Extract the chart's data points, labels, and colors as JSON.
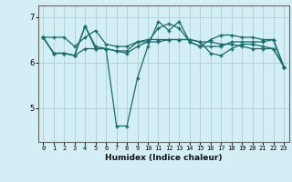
{
  "xlabel": "Humidex (Indice chaleur)",
  "bg_color": "#d4eef5",
  "grid_color": "#afd4dc",
  "line_color": "#1a6b6b",
  "xlim": [
    -0.5,
    23.5
  ],
  "ylim": [
    4.25,
    7.25
  ],
  "yticks": [
    5,
    6,
    7
  ],
  "xtick_labels": [
    "0",
    "1",
    "2",
    "3",
    "4",
    "5",
    "6",
    "7",
    "8",
    "9",
    "10",
    "11",
    "12",
    "13",
    "14",
    "15",
    "16",
    "17",
    "18",
    "19",
    "20",
    "21",
    "22",
    "23"
  ],
  "series": [
    [
      6.55,
      6.55,
      6.55,
      6.35,
      6.55,
      6.7,
      6.4,
      6.35,
      6.35,
      6.45,
      6.5,
      6.5,
      6.5,
      6.5,
      6.5,
      6.45,
      6.45,
      6.4,
      6.4,
      6.35,
      6.3,
      6.3,
      6.3,
      5.9
    ],
    [
      6.55,
      6.2,
      6.2,
      6.15,
      6.8,
      6.35,
      6.3,
      6.25,
      6.2,
      6.35,
      6.45,
      6.75,
      6.85,
      6.75,
      6.45,
      6.35,
      6.5,
      6.6,
      6.6,
      6.55,
      6.55,
      6.5,
      6.5,
      5.9
    ],
    [
      6.55,
      6.2,
      6.2,
      6.15,
      6.8,
      6.3,
      6.3,
      4.6,
      4.6,
      5.65,
      6.35,
      6.9,
      6.7,
      6.9,
      6.45,
      6.35,
      6.35,
      6.35,
      6.45,
      6.45,
      6.45,
      6.45,
      6.5,
      5.9
    ],
    [
      6.55,
      6.2,
      6.2,
      6.15,
      6.3,
      6.3,
      6.3,
      6.25,
      6.25,
      6.45,
      6.45,
      6.45,
      6.5,
      6.5,
      6.5,
      6.45,
      6.2,
      6.15,
      6.3,
      6.4,
      6.4,
      6.35,
      6.3,
      5.9
    ]
  ]
}
